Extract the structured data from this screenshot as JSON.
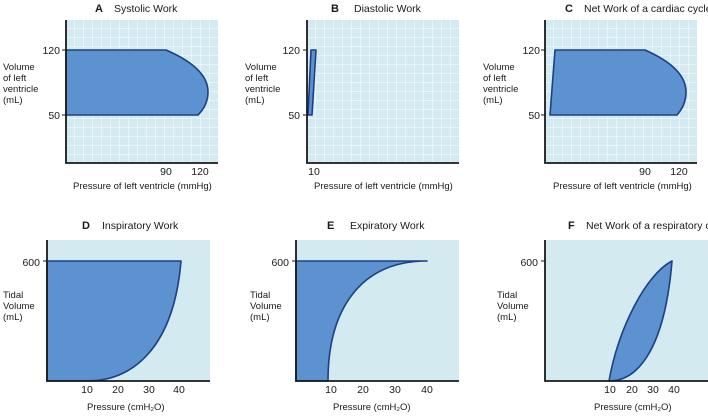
{
  "colors": {
    "plot_background": "#d4eaf1",
    "shape_fill": "#5b92cf",
    "shape_stroke": "#1c3f86",
    "grid": "#ffffff"
  },
  "panels": {
    "a": {
      "letter": "A",
      "title": "Systolic Work",
      "ylabel_lines": [
        "Volume",
        "of left",
        "ventricle",
        "(mL)"
      ],
      "xlabel": "Pressure of left ventricle (mmHg)",
      "y_ticks": [
        "120",
        "50"
      ],
      "x_ticks": [
        "90",
        "120"
      ]
    },
    "b": {
      "letter": "B",
      "title": "Diastolic Work",
      "ylabel_lines": [
        "Volume",
        "of left",
        "ventricle",
        "(mL)"
      ],
      "xlabel": "Pressure of left ventricle (mmHg)",
      "y_ticks": [
        "120",
        "50"
      ],
      "x_ticks": [
        "10"
      ]
    },
    "c": {
      "letter": "C",
      "title": "Net Work of a cardiac cycle",
      "ylabel_lines": [
        "Volume",
        "of left",
        "ventricle",
        "(mL)"
      ],
      "xlabel": "Pressure of left ventricle (mmHg)",
      "y_ticks": [
        "120",
        "50"
      ],
      "x_ticks": [
        "90",
        "120"
      ]
    },
    "d": {
      "letter": "D",
      "title": "Inspiratory Work",
      "ylabel_lines": [
        "Tidal",
        "Volume",
        "(mL)"
      ],
      "xlabel": "Pressure (cmH₂O)",
      "y_ticks": [
        "600"
      ],
      "x_ticks": [
        "10",
        "20",
        "30",
        "40"
      ]
    },
    "e": {
      "letter": "E",
      "title": "Expiratory Work",
      "ylabel_lines": [
        "Tidal",
        "Volume",
        "(mL)"
      ],
      "xlabel": "Pressure (cmH₂O)",
      "y_ticks": [
        "600"
      ],
      "x_ticks": [
        "10",
        "20",
        "30",
        "40"
      ]
    },
    "f": {
      "letter": "F",
      "title": "Net Work of a respiratory cycle",
      "ylabel_lines": [
        "Tidal",
        "Volume",
        "(mL)"
      ],
      "xlabel": "Pressure (cmH₂O)",
      "y_ticks": [
        "600"
      ],
      "x_ticks": [
        "10",
        "20",
        "30",
        "40"
      ]
    }
  }
}
